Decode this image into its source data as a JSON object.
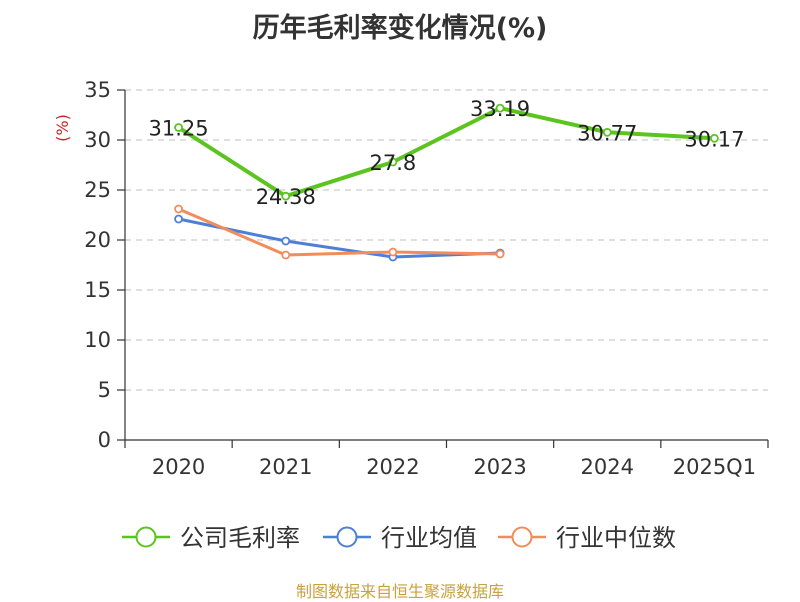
{
  "chart_data": {
    "type": "line",
    "title": "历年毛利率变化情况(%)",
    "ylabel": "(%)",
    "xlabel": "",
    "categories": [
      "2020",
      "2021",
      "2022",
      "2023",
      "2024",
      "2025Q1"
    ],
    "ylim": [
      0,
      35
    ],
    "yticks": [
      0,
      5,
      10,
      15,
      20,
      25,
      30,
      35
    ],
    "grid": "horizontal-dashed",
    "legend_position": "bottom",
    "series": [
      {
        "name": "公司毛利率",
        "color": "#5cc41e",
        "values": [
          31.25,
          24.38,
          27.8,
          33.19,
          30.77,
          30.17
        ],
        "labels": [
          "31.25",
          "24.38",
          "27.8",
          "33.19",
          "30.77",
          "30.17"
        ]
      },
      {
        "name": "行业均值",
        "color": "#4e7fd8",
        "values": [
          22.1,
          19.9,
          18.3,
          18.7,
          null,
          null
        ]
      },
      {
        "name": "行业中位数",
        "color": "#f28c5a",
        "values": [
          23.1,
          18.5,
          18.8,
          18.6,
          null,
          null
        ]
      }
    ]
  },
  "source_note": "制图数据来自恒生聚源数据库"
}
